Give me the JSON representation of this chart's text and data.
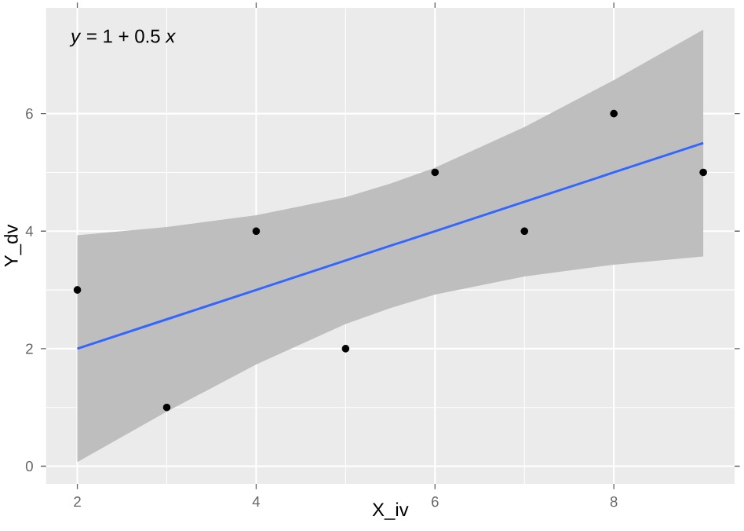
{
  "chart_data": {
    "type": "scatter",
    "xlabel": "X_iv",
    "ylabel": "Y_dv",
    "annotations": [
      "*y* = 1 + 0.5 *x*"
    ],
    "xlim": [
      1.65,
      9.35
    ],
    "ylim": [
      -0.3,
      7.8
    ],
    "xticks": [
      2,
      4,
      6,
      8
    ],
    "yticks": [
      0,
      2,
      4,
      6
    ],
    "grid": true,
    "series": [
      {
        "type": "scatter",
        "color": "#000000",
        "marker": "circle",
        "x": [
          2,
          3,
          4,
          5,
          6,
          7,
          8,
          9
        ],
        "values": [
          3,
          1,
          4,
          2,
          5,
          4,
          6,
          5
        ]
      },
      {
        "type": "line",
        "color": "#3366ff",
        "marker": "none",
        "line_style": "solid",
        "x": [
          2,
          3,
          4,
          5,
          5.5,
          6,
          7,
          8,
          9
        ],
        "values": [
          2,
          2.5,
          3,
          3.5,
          3.75,
          4,
          4.5,
          5,
          5.5
        ],
        "lower": [
          0.07,
          0.93,
          1.73,
          2.42,
          2.69,
          2.92,
          3.23,
          3.43,
          3.57
        ],
        "upper": [
          3.93,
          4.07,
          4.27,
          4.58,
          4.81,
          5.08,
          5.77,
          6.57,
          7.43
        ]
      }
    ]
  }
}
